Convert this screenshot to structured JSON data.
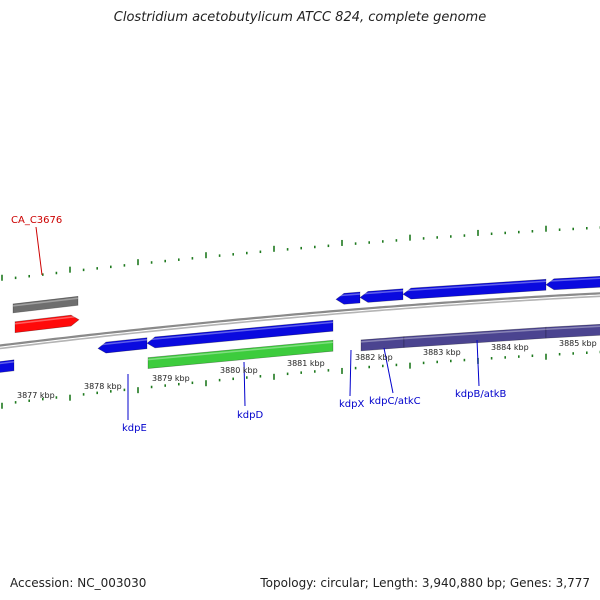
{
  "title": "Clostridium acetobutylicum ATCC 824, complete genome",
  "footer": {
    "accession": "Accession: NC_003030",
    "summary": "Topology: circular; Length: 3,940,880 bp; Genes: 3,777"
  },
  "colors": {
    "backbone": "#8a8a8a",
    "gene_blue": "#0a0adf",
    "gene_red": "#ff0a0a",
    "gene_grey": "#6e6e6e",
    "gene_green": "#3dcc3d",
    "gene_purple": "#4b4490",
    "tick_green": "#1f7a1f",
    "label_blue": "#0000cc",
    "label_red": "#cc0000"
  },
  "scale_labels": [
    {
      "text": "3877 kbp"
    },
    {
      "text": "3878 kbp"
    },
    {
      "text": "3879 kbp"
    },
    {
      "text": "3880 kbp"
    },
    {
      "text": "3881 kbp"
    },
    {
      "text": "3882 kbp"
    },
    {
      "text": "3883 kbp"
    },
    {
      "text": "3884 kbp"
    },
    {
      "text": "3885 kbp"
    }
  ],
  "gene_labels": [
    {
      "text": "CA_C3676"
    },
    {
      "text": "kdpE"
    },
    {
      "text": "kdpD"
    },
    {
      "text": "kdpX"
    },
    {
      "text": "kdpC/atkC"
    },
    {
      "text": "kdpB/atkB"
    }
  ]
}
